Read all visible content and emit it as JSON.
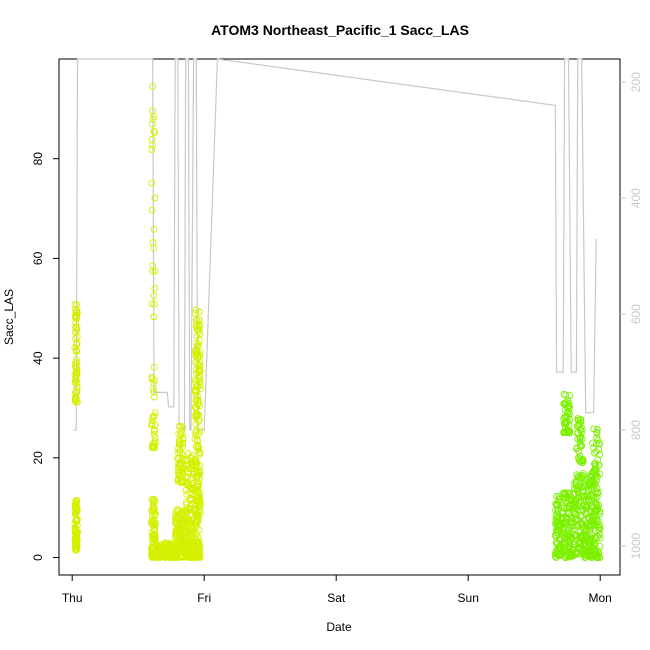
{
  "chart_data": {
    "type": "scatter",
    "title": "ATOM3 Northeast_Pacific_1 Sacc_LAS",
    "xlabel": "Date",
    "ylabel": "Sacc_LAS",
    "x_tick_labels": [
      "Thu",
      "Fri",
      "Sat",
      "Sun",
      "Mon"
    ],
    "x_tick_values": [
      0,
      1,
      2,
      3,
      4
    ],
    "xlim": [
      -0.1,
      4.15
    ],
    "ylim": [
      -3.5,
      100
    ],
    "y_ticks": [
      0,
      20,
      40,
      60,
      80
    ],
    "right_axis": {
      "label_color": "#c8c8c8",
      "ticks": [
        200,
        400,
        600,
        800,
        1000
      ],
      "reversed": true,
      "range": [
        160,
        1050
      ]
    },
    "colors": {
      "early_points": "#d4f000",
      "late_points": "#7cf000",
      "line": "#c8c8c8"
    },
    "series": [
      {
        "type": "points",
        "color": "#d4f000",
        "segments": [
          {
            "x": [
              0.02,
              0.04
            ],
            "y": [
              1.5,
              11.5
            ],
            "n": 90
          },
          {
            "x": [
              0.02,
              0.04
            ],
            "y": [
              31,
              51
            ],
            "n": 60
          },
          {
            "x": [
              0.6,
              0.63
            ],
            "y": [
              0,
              12
            ],
            "n": 70
          },
          {
            "x": [
              0.6,
              0.63
            ],
            "y": [
              22,
              40
            ],
            "n": 30
          },
          {
            "x": [
              0.6,
              0.63
            ],
            "y": [
              48,
              96
            ],
            "n": 25
          },
          {
            "x": [
              0.63,
              0.78
            ],
            "y": [
              0,
              3
            ],
            "n": 130
          },
          {
            "x": [
              0.78,
              0.86
            ],
            "y": [
              0,
              10
            ],
            "n": 120
          },
          {
            "x": [
              0.8,
              0.84
            ],
            "y": [
              15,
              27
            ],
            "n": 60
          },
          {
            "x": [
              0.86,
              0.92
            ],
            "y": [
              0,
              21
            ],
            "n": 130
          },
          {
            "x": [
              0.93,
              0.97
            ],
            "y": [
              0,
              50
            ],
            "n": 220
          }
        ]
      },
      {
        "type": "points",
        "color": "#7cf000",
        "segments": [
          {
            "x": [
              3.66,
              3.8
            ],
            "y": [
              0,
              13
            ],
            "n": 180
          },
          {
            "x": [
              3.72,
              3.77
            ],
            "y": [
              25,
              33
            ],
            "n": 50
          },
          {
            "x": [
              3.8,
              3.94
            ],
            "y": [
              0,
              17
            ],
            "n": 200
          },
          {
            "x": [
              3.82,
              3.87
            ],
            "y": [
              19,
              28
            ],
            "n": 40
          },
          {
            "x": [
              3.94,
              4.0
            ],
            "y": [
              0,
              26
            ],
            "n": 110
          }
        ]
      },
      {
        "type": "line",
        "color": "#c8c8c8",
        "axis": "right",
        "points": [
          [
            0.01,
            800
          ],
          [
            0.03,
            800
          ],
          [
            0.04,
            160
          ],
          [
            0.05,
            160
          ],
          [
            0.61,
            160
          ],
          [
            0.62,
            735
          ],
          [
            0.72,
            735
          ],
          [
            0.73,
            760
          ],
          [
            0.77,
            760
          ],
          [
            0.78,
            160
          ],
          [
            0.8,
            160
          ],
          [
            0.81,
            790
          ],
          [
            0.82,
            790
          ],
          [
            0.85,
            800
          ],
          [
            0.86,
            160
          ],
          [
            0.88,
            160
          ],
          [
            0.89,
            800
          ],
          [
            0.9,
            800
          ],
          [
            0.92,
            160
          ],
          [
            0.94,
            160
          ],
          [
            0.95,
            800
          ],
          [
            1.0,
            800
          ],
          [
            1.1,
            160
          ],
          [
            3.66,
            240
          ],
          [
            3.67,
            700
          ],
          [
            3.72,
            700
          ],
          [
            3.73,
            160
          ],
          [
            3.76,
            160
          ],
          [
            3.78,
            700
          ],
          [
            3.82,
            700
          ],
          [
            3.83,
            160
          ],
          [
            3.86,
            160
          ],
          [
            3.89,
            770
          ],
          [
            3.95,
            770
          ],
          [
            3.97,
            470
          ]
        ]
      }
    ]
  }
}
